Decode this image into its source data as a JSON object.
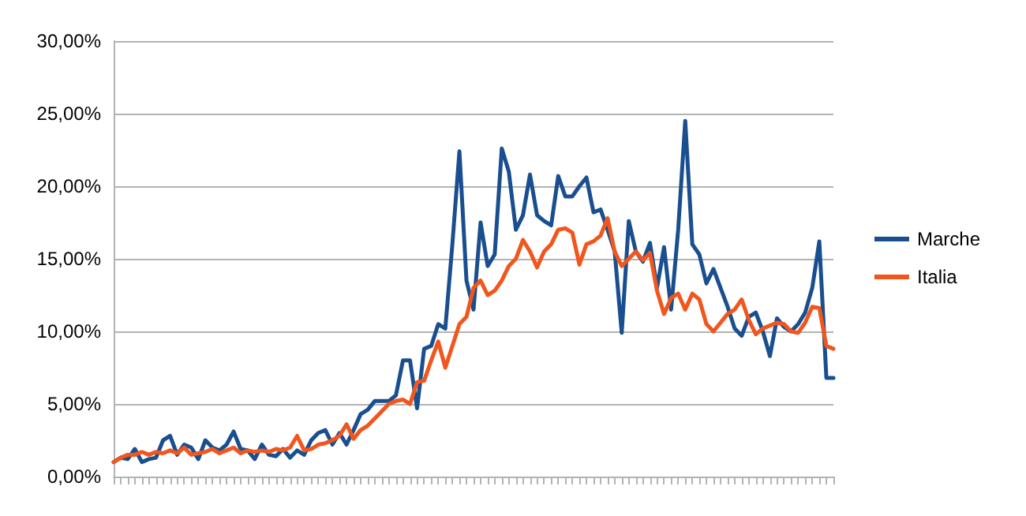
{
  "chart_data": {
    "type": "line",
    "categories": [
      null,
      null,
      null,
      null,
      null,
      null,
      null,
      null,
      null,
      null,
      null,
      null,
      null,
      null,
      null,
      null,
      null,
      null,
      null,
      null,
      null,
      null,
      null,
      null,
      null,
      null,
      null,
      null,
      null,
      null,
      null,
      null,
      null,
      null,
      null,
      null,
      null,
      null,
      null,
      null,
      null,
      null,
      null,
      null,
      null,
      null,
      null,
      null,
      null,
      null,
      null,
      null,
      null,
      null,
      null,
      null,
      null,
      null,
      null,
      null,
      null,
      null,
      null,
      null,
      null,
      null,
      null,
      null,
      null,
      null,
      null,
      null,
      null,
      null,
      null,
      null,
      null,
      null,
      null,
      null,
      null,
      null,
      null,
      null,
      null,
      null,
      null,
      null,
      null,
      null,
      null,
      null,
      null,
      null,
      null,
      null,
      null,
      null,
      null,
      null,
      null,
      null,
      null
    ],
    "series": [
      {
        "name": "Marche",
        "color": "#1a4f8f",
        "values": [
          1.0,
          1.3,
          1.2,
          1.9,
          1.0,
          1.2,
          1.3,
          2.5,
          2.8,
          1.5,
          2.2,
          2.0,
          1.2,
          2.5,
          2.0,
          1.8,
          2.2,
          3.1,
          1.9,
          1.8,
          1.2,
          2.2,
          1.5,
          1.4,
          1.9,
          1.3,
          1.8,
          1.5,
          2.5,
          3.0,
          3.2,
          2.2,
          3.0,
          2.2,
          3.2,
          4.3,
          4.6,
          5.2,
          5.2,
          5.2,
          5.6,
          8.0,
          8.0,
          4.7,
          8.8,
          9.0,
          10.5,
          10.2,
          16,
          22.4,
          13.5,
          11.5,
          17.5,
          14.5,
          15.3,
          22.6,
          21,
          17,
          18,
          20.8,
          18.0,
          17.6,
          17.3,
          20.7,
          19.3,
          19.3,
          20.0,
          20.6,
          18.2,
          18.4,
          17.0,
          15.5,
          9.9,
          17.6,
          15.5,
          14.8,
          16.1,
          13.0,
          15.8,
          11.5,
          17.0,
          24.5,
          16.0,
          15.3,
          13.3,
          14.3,
          13.0,
          11.7,
          10.2,
          9.7,
          11.0,
          11.3,
          10.0,
          8.3,
          10.9,
          10.3,
          10.0,
          10.5,
          11.3,
          13,
          16.2,
          6.8,
          6.8
        ]
      },
      {
        "name": "Italia",
        "color": "#f0561d",
        "values": [
          1.0,
          1.3,
          1.5,
          1.5,
          1.7,
          1.5,
          1.7,
          1.6,
          1.8,
          1.6,
          2.0,
          1.5,
          1.6,
          1.7,
          1.9,
          1.6,
          1.8,
          2.0,
          1.6,
          1.8,
          1.7,
          1.8,
          1.7,
          1.9,
          1.8,
          2.0,
          2.8,
          1.8,
          1.9,
          2.2,
          2.3,
          2.5,
          2.8,
          3.6,
          2.6,
          3.2,
          3.5,
          4.0,
          4.5,
          5.0,
          5.2,
          5.3,
          5.0,
          6.5,
          6.6,
          8.0,
          9.3,
          7.5,
          9.0,
          10.5,
          11.0,
          13.0,
          13.5,
          12.5,
          12.8,
          13.5,
          14.5,
          15.0,
          16.3,
          15.5,
          14.4,
          15.5,
          16.0,
          17.0,
          17.1,
          16.8,
          14.6,
          16.0,
          16.2,
          16.6,
          17.8,
          15.5,
          14.5,
          15.0,
          15.5,
          14.9,
          15.4,
          12.8,
          11.2,
          12.3,
          12.6,
          11.5,
          12.6,
          12.2,
          10.5,
          10.0,
          10.6,
          11.2,
          11.5,
          12.2,
          10.8,
          9.8,
          10.2,
          10.4,
          10.6,
          10.5,
          10.0,
          9.9,
          10.6,
          11.7,
          11.6,
          9.0,
          8.8
        ]
      }
    ],
    "ylim": [
      0,
      30
    ],
    "yticks": [
      {
        "value": 0,
        "label": "0,00%"
      },
      {
        "value": 5,
        "label": "5,00%"
      },
      {
        "value": 10,
        "label": "10,00%"
      },
      {
        "value": 15,
        "label": "15,00%"
      },
      {
        "value": 20,
        "label": "20,00%"
      },
      {
        "value": 25,
        "label": "25,00%"
      },
      {
        "value": 30,
        "label": "30,00%"
      }
    ],
    "grid": "y",
    "legend": "right",
    "tick_labels": "y",
    "line_style": "solid"
  }
}
